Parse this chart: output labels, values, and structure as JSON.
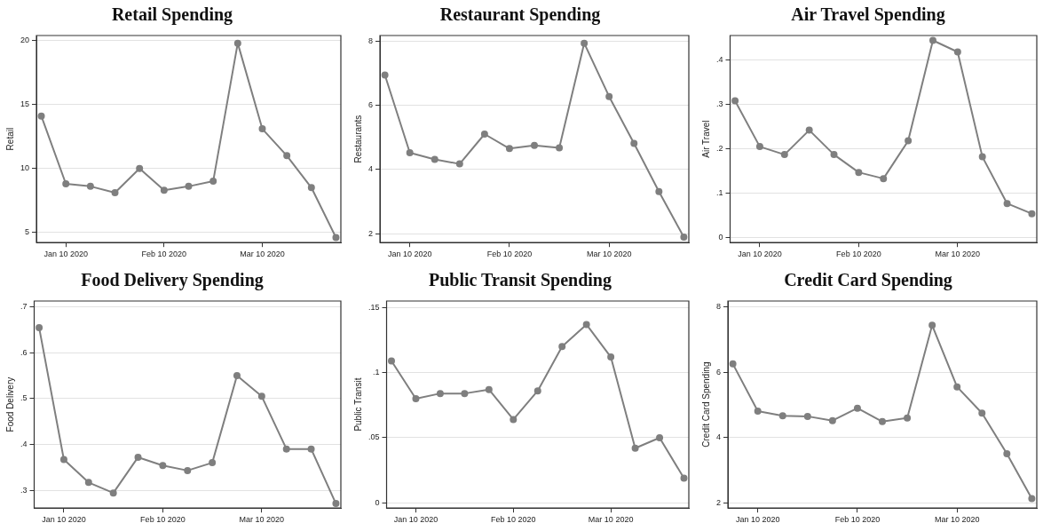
{
  "chart_data": [
    {
      "type": "line",
      "title": "Retail Spending",
      "ylabel": "Retail",
      "categories": [
        null,
        "Jan 10 2020",
        null,
        null,
        null,
        "Feb 10 2020",
        null,
        null,
        null,
        "Mar 10 2020",
        null,
        null,
        null
      ],
      "series": [
        {
          "color": "#7f7f7f",
          "values": [
            14.1,
            8.8,
            8.6,
            8.1,
            10.0,
            8.3,
            8.6,
            9.0,
            19.8,
            13.1,
            11.0,
            8.5,
            4.6
          ]
        }
      ],
      "ylim": [
        4.2,
        20.4
      ],
      "yticks": [
        5,
        10,
        15,
        20
      ],
      "grid": "y",
      "marker": "circle",
      "legend": false
    },
    {
      "type": "line",
      "title": "Restaurant Spending",
      "ylabel": "Restaurants",
      "categories": [
        null,
        "Jan 10 2020",
        null,
        null,
        null,
        "Feb 10 2020",
        null,
        null,
        null,
        "Mar 10 2020",
        null,
        null,
        null
      ],
      "series": [
        {
          "color": "#7f7f7f",
          "values": [
            6.94,
            4.52,
            4.31,
            4.17,
            5.1,
            4.65,
            4.75,
            4.67,
            7.93,
            6.27,
            4.81,
            3.31,
            1.89
          ]
        }
      ],
      "ylim": [
        1.72,
        8.17
      ],
      "yticks": [
        2,
        4,
        6,
        8
      ],
      "grid": "y",
      "marker": "circle",
      "legend": false
    },
    {
      "type": "line",
      "title": "Air Travel Spending",
      "ylabel": "Air Travel",
      "categories": [
        null,
        "Jan 10 2020",
        null,
        null,
        null,
        "Feb 10 2020",
        null,
        null,
        null,
        "Mar 10 2020",
        null,
        null,
        null
      ],
      "series": [
        {
          "color": "#7f7f7f",
          "values": [
            0.307,
            0.204,
            0.186,
            0.241,
            0.186,
            0.146,
            0.132,
            0.217,
            0.443,
            0.417,
            0.181,
            0.076,
            0.053
          ]
        }
      ],
      "ylim": [
        -0.012,
        0.454
      ],
      "yticks": [
        0,
        {
          "value": 0.1,
          "label": ".1"
        },
        {
          "value": 0.2,
          "label": ".2"
        },
        {
          "value": 0.3,
          "label": ".3"
        },
        {
          "value": 0.4,
          "label": ".4"
        }
      ],
      "grid": "y",
      "marker": "circle",
      "legend": false
    },
    {
      "type": "line",
      "title": "Food Delivery Spending",
      "ylabel": "Food Delivery",
      "categories": [
        null,
        "Jan 10 2020",
        null,
        null,
        null,
        "Feb 10 2020",
        null,
        null,
        null,
        "Mar 10 2020",
        null,
        null,
        null
      ],
      "series": [
        {
          "color": "#7f7f7f",
          "values": [
            0.655,
            0.367,
            0.317,
            0.294,
            0.372,
            0.354,
            0.343,
            0.36,
            0.55,
            0.505,
            0.39,
            0.39,
            0.271
          ]
        }
      ],
      "ylim": [
        0.261,
        0.713
      ],
      "yticks": [
        {
          "value": 0.3,
          "label": ".3"
        },
        {
          "value": 0.4,
          "label": ".4"
        },
        {
          "value": 0.5,
          "label": ".5"
        },
        {
          "value": 0.6,
          "label": ".6"
        },
        {
          "value": 0.7,
          "label": ".7"
        }
      ],
      "grid": "y",
      "marker": "circle",
      "legend": false
    },
    {
      "type": "line",
      "title": "Public Transit Spending",
      "ylabel": "Public Transit",
      "categories": [
        null,
        "Jan 10 2020",
        null,
        null,
        null,
        "Feb 10 2020",
        null,
        null,
        null,
        "Mar 10 2020",
        null,
        null,
        null
      ],
      "series": [
        {
          "color": "#7f7f7f",
          "values": [
            0.109,
            0.08,
            0.084,
            0.084,
            0.087,
            0.064,
            0.086,
            0.12,
            0.137,
            0.112,
            0.042,
            0.05,
            0.019
          ]
        }
      ],
      "ylim": [
        -0.004,
        0.155
      ],
      "yticks": [
        0,
        {
          "value": 0.05,
          "label": ".05"
        },
        {
          "value": 0.1,
          "label": ".1"
        },
        {
          "value": 0.15,
          "label": ".15"
        }
      ],
      "grid": "y",
      "marker": "circle",
      "legend": false
    },
    {
      "type": "line",
      "title": "Credit Card Spending",
      "ylabel": "Credit Card Spending",
      "categories": [
        null,
        "Jan 10 2020",
        null,
        null,
        null,
        "Feb 10 2020",
        null,
        null,
        null,
        "Mar 10 2020",
        null,
        null,
        null
      ],
      "series": [
        {
          "color": "#7f7f7f",
          "values": [
            6.25,
            4.81,
            4.67,
            4.65,
            4.52,
            4.9,
            4.49,
            4.6,
            7.43,
            5.55,
            4.75,
            3.51,
            2.14
          ]
        }
      ],
      "ylim": [
        1.85,
        8.17
      ],
      "yticks": [
        2,
        4,
        6,
        8
      ],
      "grid": "y",
      "marker": "circle",
      "legend": false
    }
  ]
}
